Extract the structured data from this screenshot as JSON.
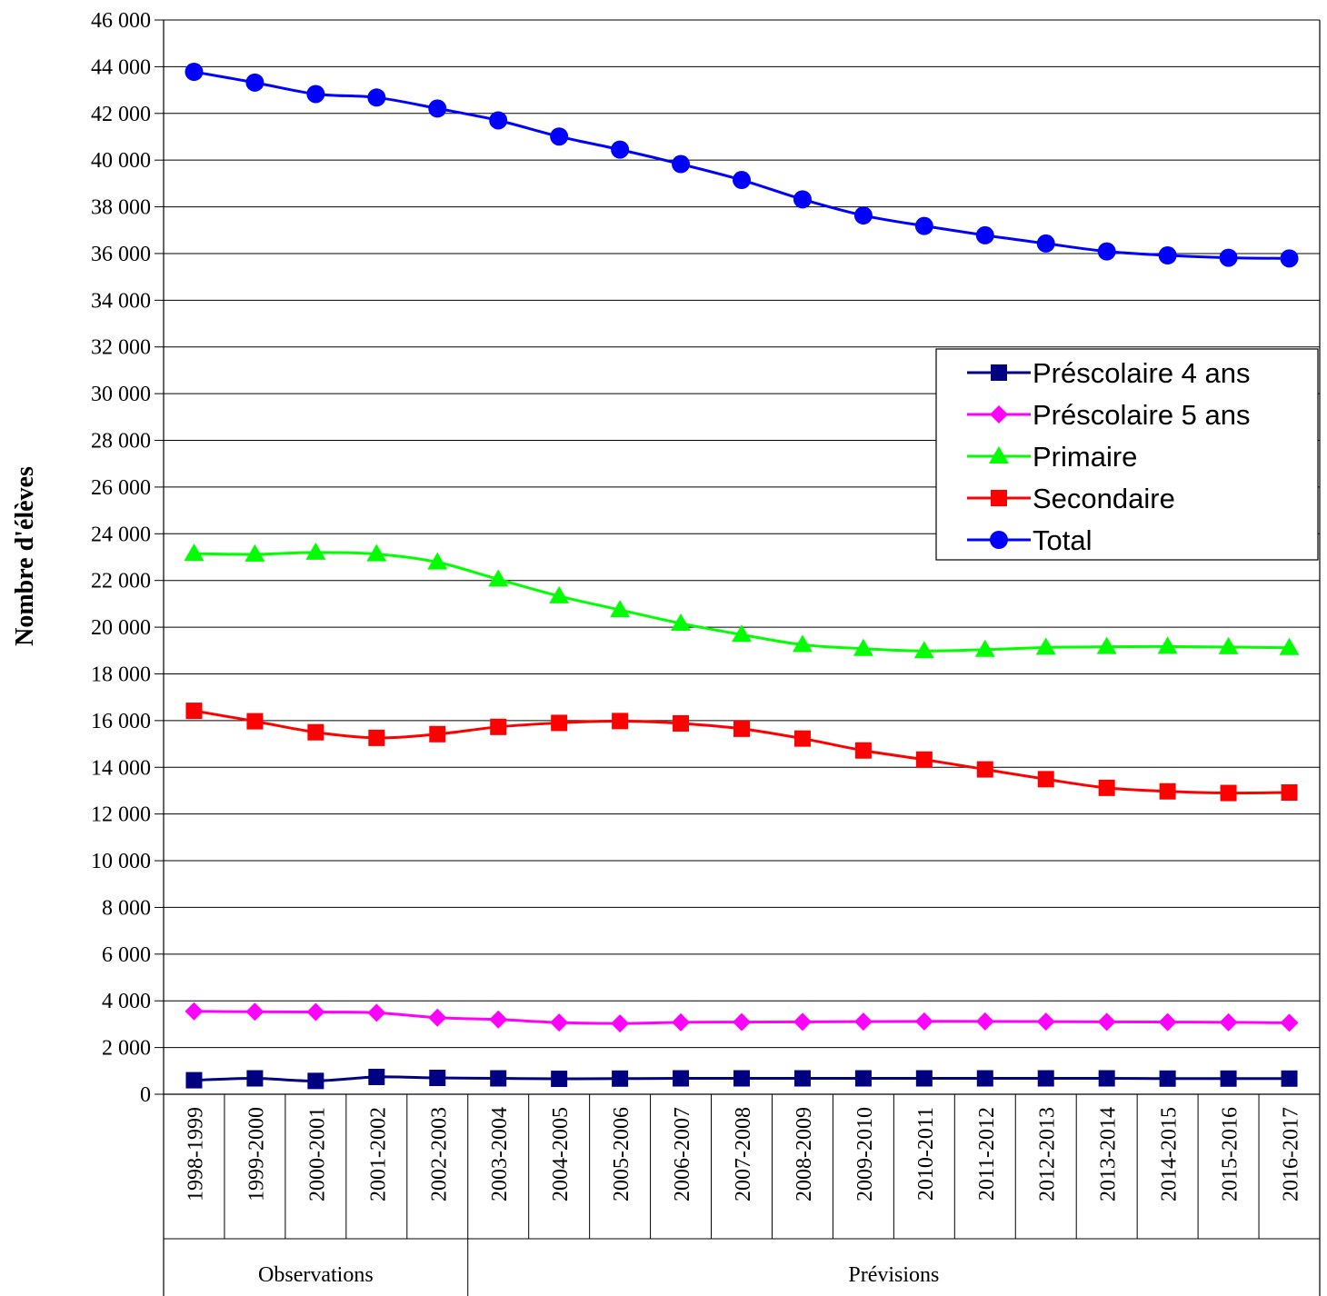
{
  "chart_data": {
    "type": "line",
    "title": "",
    "xlabel": "",
    "ylabel": "Nombre d'élèves",
    "ylim": [
      0,
      46000
    ],
    "ytick_step": 2000,
    "ytick_labels": [
      "0",
      "2 000",
      "4 000",
      "6 000",
      "8 000",
      "10 000",
      "12 000",
      "14 000",
      "16 000",
      "18 000",
      "20 000",
      "22 000",
      "24 000",
      "26 000",
      "28 000",
      "30 000",
      "32 000",
      "34 000",
      "36 000",
      "38 000",
      "40 000",
      "42 000",
      "44 000",
      "46 000"
    ],
    "grid": true,
    "legend_position": "right",
    "categories": [
      "1998-1999",
      "1999-2000",
      "2000-2001",
      "2001-2002",
      "2002-2003",
      "2003-2004",
      "2004-2005",
      "2005-2006",
      "2006-2007",
      "2007-2008",
      "2008-2009",
      "2009-2010",
      "2010-2011",
      "2011-2012",
      "2012-2013",
      "2013-2014",
      "2014-2015",
      "2015-2016",
      "2016-2017"
    ],
    "groups": [
      {
        "label": "Observations",
        "count": 5
      },
      {
        "label": "Prévisions",
        "count": 14
      }
    ],
    "series": [
      {
        "name": "Préscolaire 4 ans",
        "color": "#000080",
        "marker": "square",
        "values": [
          600,
          680,
          570,
          740,
          700,
          680,
          660,
          670,
          680,
          680,
          680,
          680,
          680,
          680,
          680,
          680,
          670,
          670,
          670
        ]
      },
      {
        "name": "Préscolaire 5 ans",
        "color": "#ff00ff",
        "marker": "diamond",
        "values": [
          3550,
          3530,
          3520,
          3490,
          3280,
          3200,
          3070,
          3030,
          3080,
          3090,
          3100,
          3110,
          3120,
          3120,
          3110,
          3100,
          3090,
          3080,
          3060
        ]
      },
      {
        "name": "Primaire",
        "color": "#00ff00",
        "marker": "triangle",
        "values": [
          23150,
          23120,
          23200,
          23130,
          22780,
          22050,
          21330,
          20740,
          20160,
          19680,
          19250,
          19080,
          18980,
          19040,
          19130,
          19160,
          19170,
          19150,
          19120
        ]
      },
      {
        "name": "Secondaire",
        "color": "#ff0000",
        "marker": "square",
        "values": [
          16420,
          15970,
          15500,
          15260,
          15420,
          15730,
          15900,
          15980,
          15880,
          15650,
          15230,
          14720,
          14330,
          13910,
          13490,
          13120,
          12970,
          12900,
          12920
        ]
      },
      {
        "name": "Total",
        "color": "#0000ff",
        "marker": "circle",
        "values": [
          43780,
          43320,
          42830,
          42680,
          42210,
          41700,
          41010,
          40450,
          39830,
          39150,
          38320,
          37630,
          37180,
          36780,
          36430,
          36090,
          35920,
          35820,
          35790
        ]
      }
    ]
  }
}
